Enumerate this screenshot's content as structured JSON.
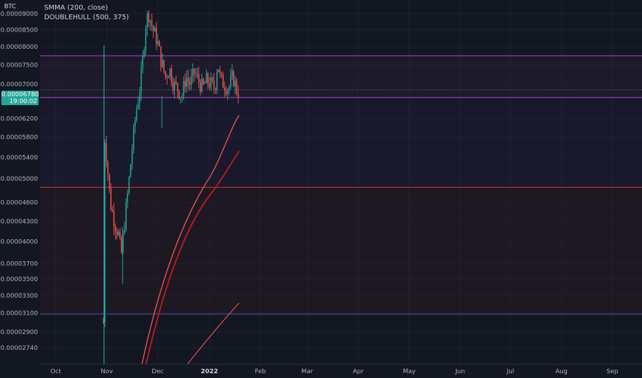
{
  "symbol": "BTC",
  "legend": [
    "SMMA (200, close)",
    "DOUBLEHULL (500, 375)"
  ],
  "current_price": "0.00006780",
  "countdown": "19:00:02",
  "colors": {
    "background": "#131722",
    "up": "#26a69a",
    "down": "#ef5350",
    "magenta_line": "#c2185b",
    "red_line": "#e53935",
    "blue_line": "#3f51b5",
    "green_dotted": "#26a69a"
  },
  "chart_data": {
    "type": "candlestick",
    "scale": "log",
    "ylim": [
      2.6e-05,
      9.2e-05
    ],
    "y_ticks": [
      "0.00009000",
      "0.00008500",
      "0.00008000",
      "0.00007500",
      "0.00007000",
      "0.00006200",
      "0.00005800",
      "0.00005400",
      "0.00005000",
      "0.00004600",
      "0.00004300",
      "0.00004000",
      "0.00003700",
      "0.00003500",
      "0.00003300",
      "0.00003100",
      "0.00002900",
      "0.00002740"
    ],
    "x_ticks": [
      "Oct",
      "Nov",
      "Dec",
      "2022",
      "Feb",
      "Mar",
      "Apr",
      "May",
      "Jun",
      "Jul",
      "Aug",
      "Sep"
    ],
    "horizontal_levels": [
      {
        "value": 7.75e-05,
        "color": "#ab47bc"
      },
      {
        "value": 6.68e-05,
        "color": "#ab47bc"
      },
      {
        "value": 4.85e-05,
        "color": "#e53935"
      },
      {
        "value": 3.09e-05,
        "color": "#3f51b5"
      }
    ],
    "last_price": 6.78e-05
  }
}
